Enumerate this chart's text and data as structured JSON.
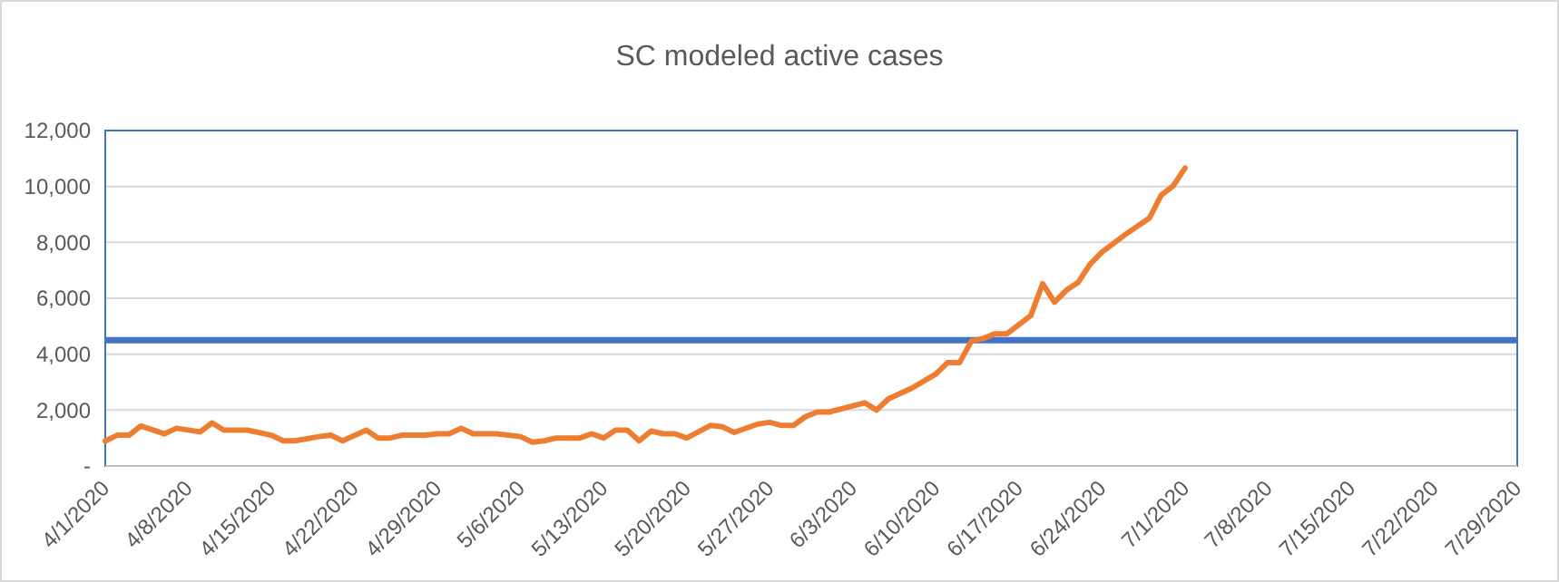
{
  "chart_data": {
    "type": "line",
    "title": "SC modeled active cases",
    "x": [
      "2020-04-01",
      "2020-04-02",
      "2020-04-03",
      "2020-04-04",
      "2020-04-06",
      "2020-04-07",
      "2020-04-09",
      "2020-04-10",
      "2020-04-11",
      "2020-04-13",
      "2020-04-15",
      "2020-04-16",
      "2020-04-17",
      "2020-04-19",
      "2020-04-20",
      "2020-04-21",
      "2020-04-23",
      "2020-04-24",
      "2020-04-25",
      "2020-04-26",
      "2020-04-28",
      "2020-04-29",
      "2020-04-30",
      "2020-05-01",
      "2020-05-02",
      "2020-05-04",
      "2020-05-06",
      "2020-05-07",
      "2020-05-08",
      "2020-05-09",
      "2020-05-11",
      "2020-05-12",
      "2020-05-13",
      "2020-05-14",
      "2020-05-15",
      "2020-05-16",
      "2020-05-17",
      "2020-05-18",
      "2020-05-19",
      "2020-05-20",
      "2020-05-22",
      "2020-05-23",
      "2020-05-24",
      "2020-05-26",
      "2020-05-27",
      "2020-05-28",
      "2020-05-29",
      "2020-05-30",
      "2020-05-31",
      "2020-06-01",
      "2020-06-02",
      "2020-06-04",
      "2020-06-05",
      "2020-06-06",
      "2020-06-08",
      "2020-06-10",
      "2020-06-11",
      "2020-06-12",
      "2020-06-13",
      "2020-06-14",
      "2020-06-15",
      "2020-06-16",
      "2020-06-18",
      "2020-06-19",
      "2020-06-20",
      "2020-06-21",
      "2020-06-22",
      "2020-06-23",
      "2020-06-24",
      "2020-06-26",
      "2020-06-28",
      "2020-06-29",
      "2020-06-30",
      "2020-07-01"
    ],
    "series": [
      {
        "color": "#ed7d31",
        "values": [
          890,
          1100,
          1100,
          1430,
          1150,
          1350,
          1220,
          1540,
          1280,
          1280,
          1100,
          900,
          900,
          1050,
          1100,
          900,
          1280,
          1000,
          1000,
          1100,
          1100,
          1150,
          1150,
          1350,
          1150,
          1150,
          1050,
          850,
          900,
          1000,
          1000,
          1150,
          1000,
          1280,
          1280,
          900,
          1250,
          1150,
          1150,
          1000,
          1450,
          1400,
          1200,
          1500,
          1560,
          1450,
          1450,
          1760,
          1930,
          1930,
          2040,
          2260,
          2000,
          2400,
          2790,
          3290,
          3700,
          3700,
          4470,
          4560,
          4730,
          4730,
          5380,
          6520,
          5860,
          6290,
          6570,
          7220,
          7650,
          8290,
          8870,
          9690,
          10020,
          10660
        ]
      }
    ],
    "ref_lines": [
      {
        "axis": "y",
        "value": 4500,
        "color": "#4472c4"
      }
    ],
    "xlim": [
      "2020-04-01",
      "2020-07-29"
    ],
    "xticks": [
      {
        "value": "2020-04-01",
        "label": "4/1/2020"
      },
      {
        "value": "2020-04-08",
        "label": "4/8/2020"
      },
      {
        "value": "2020-04-15",
        "label": "4/15/2020"
      },
      {
        "value": "2020-04-22",
        "label": "4/22/2020"
      },
      {
        "value": "2020-04-29",
        "label": "4/29/2020"
      },
      {
        "value": "2020-05-06",
        "label": "5/6/2020"
      },
      {
        "value": "2020-05-13",
        "label": "5/13/2020"
      },
      {
        "value": "2020-05-20",
        "label": "5/20/2020"
      },
      {
        "value": "2020-05-27",
        "label": "5/27/2020"
      },
      {
        "value": "2020-06-03",
        "label": "6/3/2020"
      },
      {
        "value": "2020-06-10",
        "label": "6/10/2020"
      },
      {
        "value": "2020-06-17",
        "label": "6/17/2020"
      },
      {
        "value": "2020-06-24",
        "label": "6/24/2020"
      },
      {
        "value": "2020-07-01",
        "label": "7/1/2020"
      },
      {
        "value": "2020-07-08",
        "label": "7/8/2020"
      },
      {
        "value": "2020-07-15",
        "label": "7/15/2020"
      },
      {
        "value": "2020-07-22",
        "label": "7/22/2020"
      },
      {
        "value": "2020-07-29",
        "label": "7/29/2020"
      }
    ],
    "ylim": [
      0,
      12000
    ],
    "yticks": [
      {
        "value": 0,
        "label": "-"
      },
      {
        "value": 2000,
        "label": "2,000"
      },
      {
        "value": 4000,
        "label": "4,000"
      },
      {
        "value": 6000,
        "label": "6,000"
      },
      {
        "value": 8000,
        "label": "8,000"
      },
      {
        "value": 10000,
        "label": "10,000"
      },
      {
        "value": 12000,
        "label": "12,000"
      }
    ],
    "grid": "y",
    "marker": "none",
    "line_style": "solid"
  }
}
